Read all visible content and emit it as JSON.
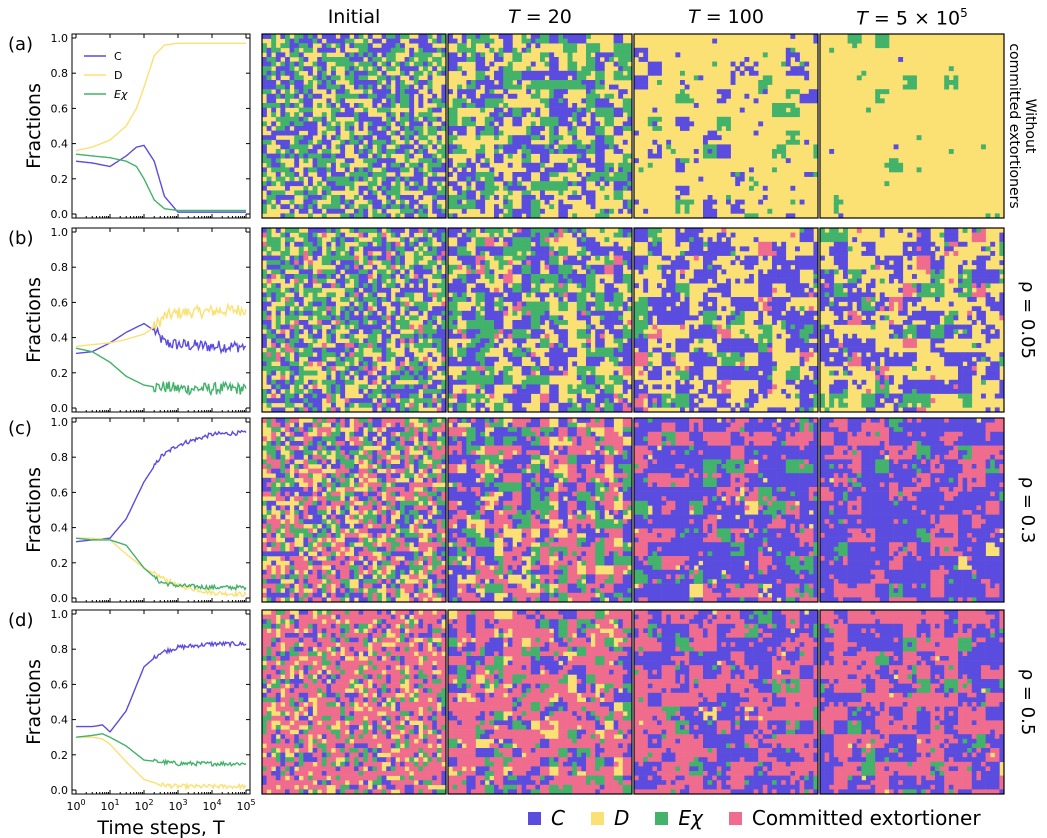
{
  "column_titles": [
    "Initial",
    "T = 20",
    "T = 100",
    "T = 5 × 10^5"
  ],
  "colors": {
    "C": "#5b4ce0",
    "D": "#fbe173",
    "Echi": "#43b26a",
    "Committed": "#f06c8f"
  },
  "legend_bottom": {
    "C": "C",
    "D": "D",
    "Echi": "Eχ",
    "Committed": "Committed extortioner"
  },
  "chart_data": [
    {
      "type": "line",
      "panel": "(a)",
      "right_label": "Without committed extortioners",
      "xscale": "log",
      "xlim": [
        1,
        100000
      ],
      "ylim": [
        0,
        1
      ],
      "xlabel": "",
      "ylabel": "Fractions",
      "yticks": [
        "0.0",
        "0.2",
        "0.4",
        "0.6",
        "0.8",
        "1.0"
      ],
      "legend": [
        "C",
        "D",
        "Eχ"
      ],
      "x": [
        1,
        3,
        10,
        30,
        60,
        100,
        200,
        400,
        1000,
        100000
      ],
      "series": [
        {
          "name": "C",
          "values": [
            0.3,
            0.29,
            0.27,
            0.33,
            0.38,
            0.39,
            0.3,
            0.1,
            0.01,
            0.01
          ]
        },
        {
          "name": "D",
          "values": [
            0.36,
            0.38,
            0.42,
            0.5,
            0.6,
            0.72,
            0.9,
            0.96,
            0.97,
            0.97
          ]
        },
        {
          "name": "Eχ",
          "values": [
            0.34,
            0.33,
            0.32,
            0.3,
            0.27,
            0.2,
            0.08,
            0.03,
            0.02,
            0.02
          ]
        }
      ]
    },
    {
      "type": "line",
      "panel": "(b)",
      "right_label": "ρ = 0.05",
      "xscale": "log",
      "xlim": [
        1,
        100000
      ],
      "ylim": [
        0,
        1
      ],
      "xlabel": "",
      "ylabel": "Fractions",
      "yticks": [
        "0.0",
        "0.2",
        "0.4",
        "0.6",
        "0.8",
        "1.0"
      ],
      "x": [
        1,
        3,
        10,
        30,
        100,
        200,
        400,
        1000,
        10000,
        100000
      ],
      "series": [
        {
          "name": "C",
          "values": [
            0.31,
            0.32,
            0.37,
            0.43,
            0.48,
            0.44,
            0.37,
            0.36,
            0.35,
            0.35
          ]
        },
        {
          "name": "D",
          "values": [
            0.35,
            0.36,
            0.37,
            0.39,
            0.42,
            0.46,
            0.52,
            0.54,
            0.55,
            0.56
          ]
        },
        {
          "name": "Eχ",
          "values": [
            0.34,
            0.32,
            0.26,
            0.18,
            0.13,
            0.12,
            0.12,
            0.11,
            0.11,
            0.11
          ]
        }
      ]
    },
    {
      "type": "line",
      "panel": "(c)",
      "right_label": "ρ = 0.3",
      "xscale": "log",
      "xlim": [
        1,
        100000
      ],
      "ylim": [
        0,
        1
      ],
      "xlabel": "",
      "ylabel": "Fractions",
      "yticks": [
        "0.0",
        "0.2",
        "0.4",
        "0.6",
        "0.8",
        "1.0"
      ],
      "x": [
        1,
        3,
        10,
        30,
        100,
        300,
        1000,
        10000,
        100000
      ],
      "series": [
        {
          "name": "C",
          "values": [
            0.32,
            0.33,
            0.34,
            0.45,
            0.66,
            0.8,
            0.87,
            0.93,
            0.94
          ]
        },
        {
          "name": "D",
          "values": [
            0.34,
            0.34,
            0.33,
            0.25,
            0.17,
            0.12,
            0.07,
            0.03,
            0.02
          ]
        },
        {
          "name": "Eχ",
          "values": [
            0.34,
            0.33,
            0.33,
            0.3,
            0.17,
            0.09,
            0.07,
            0.06,
            0.06
          ]
        }
      ]
    },
    {
      "type": "line",
      "panel": "(d)",
      "right_label": "ρ = 0.5",
      "xscale": "log",
      "xlim": [
        1,
        100000
      ],
      "ylim": [
        0,
        1
      ],
      "xlabel": "Time steps, T",
      "ylabel": "Fractions",
      "yticks": [
        "0.0",
        "0.2",
        "0.4",
        "0.6",
        "0.8",
        "1.0"
      ],
      "xticks": [
        "10^0",
        "10^1",
        "10^2",
        "10^3",
        "10^4",
        "10^5"
      ],
      "x": [
        1,
        3,
        6,
        10,
        30,
        100,
        300,
        1000,
        10000,
        100000
      ],
      "series": [
        {
          "name": "C",
          "values": [
            0.36,
            0.36,
            0.37,
            0.33,
            0.45,
            0.7,
            0.78,
            0.81,
            0.83,
            0.83
          ]
        },
        {
          "name": "D",
          "values": [
            0.3,
            0.3,
            0.29,
            0.26,
            0.16,
            0.06,
            0.03,
            0.02,
            0.02,
            0.02
          ]
        },
        {
          "name": "Eχ",
          "values": [
            0.3,
            0.31,
            0.32,
            0.3,
            0.25,
            0.17,
            0.16,
            0.15,
            0.15,
            0.15
          ]
        }
      ]
    }
  ],
  "lattice_data": {
    "rows": [
      [
        {
          "C": 0.33,
          "D": 0.34,
          "Echi": 0.33,
          "Committed": 0.0
        },
        {
          "C": 0.32,
          "D": 0.4,
          "Echi": 0.28,
          "Committed": 0.0
        },
        {
          "C": 0.12,
          "D": 0.82,
          "Echi": 0.06,
          "Committed": 0.0
        },
        {
          "C": 0.01,
          "D": 0.97,
          "Echi": 0.02,
          "Committed": 0.0
        }
      ],
      [
        {
          "C": 0.31,
          "D": 0.33,
          "Echi": 0.31,
          "Committed": 0.05
        },
        {
          "C": 0.36,
          "D": 0.37,
          "Echi": 0.22,
          "Committed": 0.05
        },
        {
          "C": 0.37,
          "D": 0.48,
          "Echi": 0.1,
          "Committed": 0.05
        },
        {
          "C": 0.35,
          "D": 0.52,
          "Echi": 0.08,
          "Committed": 0.05
        }
      ],
      [
        {
          "C": 0.23,
          "D": 0.24,
          "Echi": 0.23,
          "Committed": 0.3
        },
        {
          "C": 0.33,
          "D": 0.17,
          "Echi": 0.2,
          "Committed": 0.3
        },
        {
          "C": 0.55,
          "D": 0.04,
          "Echi": 0.11,
          "Committed": 0.3
        },
        {
          "C": 0.63,
          "D": 0.01,
          "Echi": 0.06,
          "Committed": 0.3
        }
      ],
      [
        {
          "C": 0.17,
          "D": 0.17,
          "Echi": 0.16,
          "Committed": 0.5
        },
        {
          "C": 0.25,
          "D": 0.1,
          "Echi": 0.15,
          "Committed": 0.5
        },
        {
          "C": 0.4,
          "D": 0.02,
          "Echi": 0.08,
          "Committed": 0.5
        },
        {
          "C": 0.42,
          "D": 0.01,
          "Echi": 0.07,
          "Committed": 0.5
        }
      ]
    ]
  }
}
